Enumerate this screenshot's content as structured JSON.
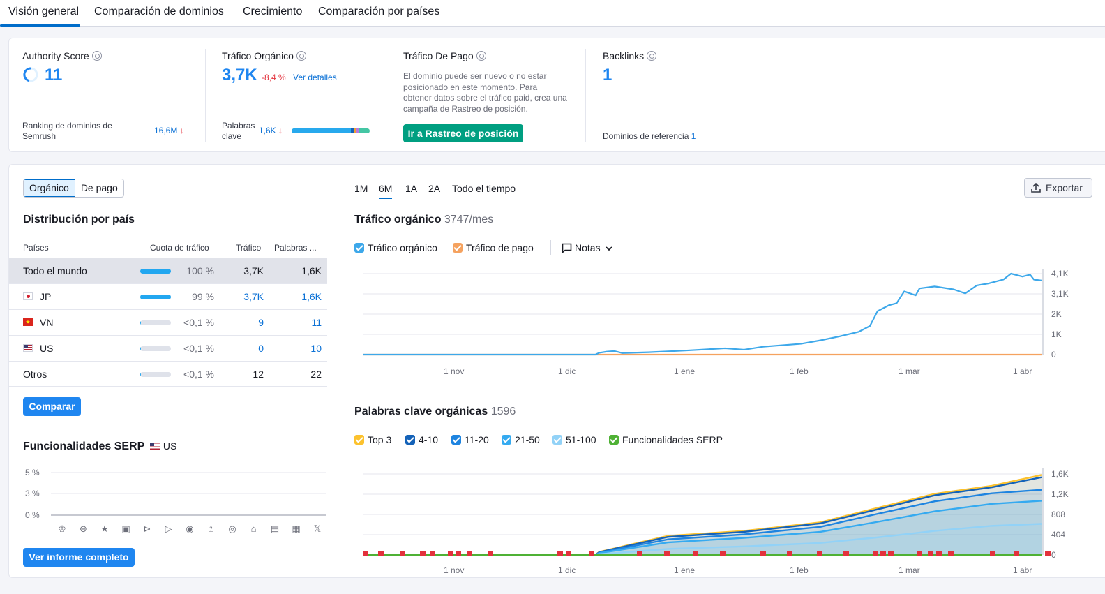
{
  "tabs": [
    "Visión general",
    "Comparación de dominios",
    "Crecimiento",
    "Comparación por países"
  ],
  "authority": {
    "title": "Authority Score",
    "value": "11",
    "ranking_label": "Ranking de dominios de Semrush",
    "ranking_value": "16,6M"
  },
  "organic": {
    "title": "Tráfico Orgánico",
    "value": "3,7K",
    "change": "-8,4 %",
    "details_link": "Ver detalles",
    "keywords_label": "Palabras clave",
    "keywords_value": "1,6K"
  },
  "paid": {
    "title": "Tráfico De Pago",
    "message": "El dominio puede ser nuevo o no estar posicionado en este momento. Para obtener datos sobre el tráfico paid, crea una campaña de Rastreo de posición.",
    "button": "Ir a Rastreo de posición"
  },
  "backlinks": {
    "title": "Backlinks",
    "value": "1",
    "refdomains_label": "Dominios de referencia",
    "refdomains_value": "1"
  },
  "left": {
    "toggle": [
      "Orgánico",
      "De pago"
    ],
    "dist_title": "Distribución por país",
    "headers": [
      "Países",
      "Cuota de tráfico",
      "Tráfico",
      "Palabras ..."
    ],
    "rows": [
      {
        "country": "Todo el mundo",
        "share": "100 %",
        "share_pct": 100,
        "traffic": "3,7K",
        "keywords": "1,6K"
      },
      {
        "country": "JP",
        "share": "99 %",
        "share_pct": 99,
        "traffic": "3,7K",
        "keywords": "1,6K"
      },
      {
        "country": "VN",
        "share": "<0,1 %",
        "share_pct": 0.1,
        "traffic": "9",
        "keywords": "11"
      },
      {
        "country": "US",
        "share": "<0,1 %",
        "share_pct": 0.1,
        "traffic": "0",
        "keywords": "10"
      },
      {
        "country": "Otros",
        "share": "<0,1 %",
        "share_pct": 0.1,
        "traffic": "12",
        "keywords": "22"
      }
    ],
    "compare_button": "Comparar",
    "serp_title": "Funcionalidades SERP",
    "serp_country": "US",
    "serp_ticks": [
      "5 %",
      "3 %",
      "0 %"
    ],
    "serp_icons": [
      "crown-icon",
      "link-icon",
      "star-icon",
      "image-icon",
      "video-icon",
      "video-box-icon",
      "play-icon",
      "faq-icon",
      "location-icon",
      "graduation-icon",
      "news-icon",
      "briefcase-icon",
      "x-icon"
    ],
    "full_report_button": "Ver informe completo"
  },
  "periods": [
    "1M",
    "6M",
    "1A",
    "2A",
    "Todo el tiempo"
  ],
  "active_period": "6M",
  "export_label": "Exportar",
  "traffic_chart": {
    "title": "Tráfico orgánico",
    "subtitle": "3747/mes",
    "legend": [
      "Tráfico orgánico",
      "Tráfico de pago"
    ],
    "notes_label": "Notas",
    "colors": {
      "organic": "#3da8ea",
      "paid": "#f5a25f"
    }
  },
  "keywords_chart": {
    "title": "Palabras clave orgánicas",
    "subtitle": "1596",
    "legend": [
      "Top 3",
      "4-10",
      "11-20",
      "21-50",
      "51-100",
      "Funcionalidades SERP"
    ],
    "colors": {
      "top3": "#fcc22e",
      "r4_10": "#1462b8",
      "r11_20": "#1e84e0",
      "r21_50": "#35aaf0",
      "r51_100": "#92d2f7",
      "serp": "#4fb135"
    }
  },
  "chart_data": [
    {
      "type": "line",
      "title": "Tráfico orgánico",
      "x_ticks": [
        "1 nov",
        "1 dic",
        "1 ene",
        "1 feb",
        "1 mar",
        "1 abr"
      ],
      "y_ticks": [
        "4,1K",
        "3,1K",
        "2K",
        "1K",
        "0"
      ],
      "ylim": [
        0,
        4100
      ],
      "series": [
        {
          "name": "Tráfico orgánico",
          "values": [
            [
              0,
              0
            ],
            [
              55,
              0
            ],
            [
              61,
              0
            ],
            [
              62,
              90
            ],
            [
              64,
              150
            ],
            [
              66,
              180
            ],
            [
              68,
              80
            ],
            [
              75,
              120
            ],
            [
              85,
              210
            ],
            [
              95,
              320
            ],
            [
              100,
              250
            ],
            [
              105,
              400
            ],
            [
              115,
              550
            ],
            [
              120,
              720
            ],
            [
              125,
              920
            ],
            [
              130,
              1150
            ],
            [
              133,
              1450
            ],
            [
              135,
              2200
            ],
            [
              138,
              2500
            ],
            [
              140,
              2600
            ],
            [
              142,
              3200
            ],
            [
              145,
              3000
            ],
            [
              146,
              3350
            ],
            [
              150,
              3450
            ],
            [
              155,
              3300
            ],
            [
              158,
              3100
            ],
            [
              161,
              3500
            ],
            [
              164,
              3600
            ],
            [
              166,
              3700
            ],
            [
              168,
              3800
            ],
            [
              170,
              4100
            ],
            [
              173,
              3950
            ],
            [
              175,
              4050
            ],
            [
              176,
              3800
            ],
            [
              178,
              3750
            ]
          ]
        },
        {
          "name": "Tráfico de pago",
          "values": [
            [
              0,
              0
            ],
            [
              178,
              0
            ]
          ]
        }
      ]
    },
    {
      "type": "area",
      "title": "Palabras clave orgánicas",
      "x_ticks": [
        "1 nov",
        "1 dic",
        "1 ene",
        "1 feb",
        "1 mar",
        "1 abr"
      ],
      "y_ticks": [
        "1,6K",
        "1,2K",
        "808",
        "404",
        "0"
      ],
      "ylim": [
        0,
        1616
      ],
      "series": [
        {
          "name": "Top 3",
          "values": [
            [
              0,
              0
            ],
            [
              61,
              0
            ],
            [
              62,
              60
            ],
            [
              80,
              380
            ],
            [
              100,
              480
            ],
            [
              120,
              650
            ],
            [
              135,
              940
            ],
            [
              150,
              1220
            ],
            [
              165,
              1380
            ],
            [
              178,
              1596
            ]
          ]
        },
        {
          "name": "4-10",
          "values": [
            [
              0,
              0
            ],
            [
              61,
              0
            ],
            [
              62,
              55
            ],
            [
              80,
              360
            ],
            [
              100,
              460
            ],
            [
              120,
              630
            ],
            [
              135,
              910
            ],
            [
              150,
              1190
            ],
            [
              165,
              1350
            ],
            [
              178,
              1550
            ]
          ]
        },
        {
          "name": "11-20",
          "values": [
            [
              0,
              0
            ],
            [
              61,
              0
            ],
            [
              62,
              45
            ],
            [
              80,
              310
            ],
            [
              100,
              410
            ],
            [
              120,
              560
            ],
            [
              135,
              820
            ],
            [
              150,
              1070
            ],
            [
              165,
              1230
            ],
            [
              178,
              1300
            ]
          ]
        },
        {
          "name": "21-50",
          "values": [
            [
              0,
              0
            ],
            [
              61,
              0
            ],
            [
              62,
              35
            ],
            [
              80,
              250
            ],
            [
              100,
              340
            ],
            [
              120,
              460
            ],
            [
              135,
              660
            ],
            [
              150,
              870
            ],
            [
              165,
              1020
            ],
            [
              178,
              1080
            ]
          ]
        },
        {
          "name": "51-100",
          "values": [
            [
              0,
              0
            ],
            [
              61,
              0
            ],
            [
              62,
              15
            ],
            [
              80,
              120
            ],
            [
              100,
              170
            ],
            [
              120,
              240
            ],
            [
              135,
              350
            ],
            [
              150,
              480
            ],
            [
              165,
              580
            ],
            [
              178,
              620
            ]
          ]
        }
      ]
    }
  ]
}
